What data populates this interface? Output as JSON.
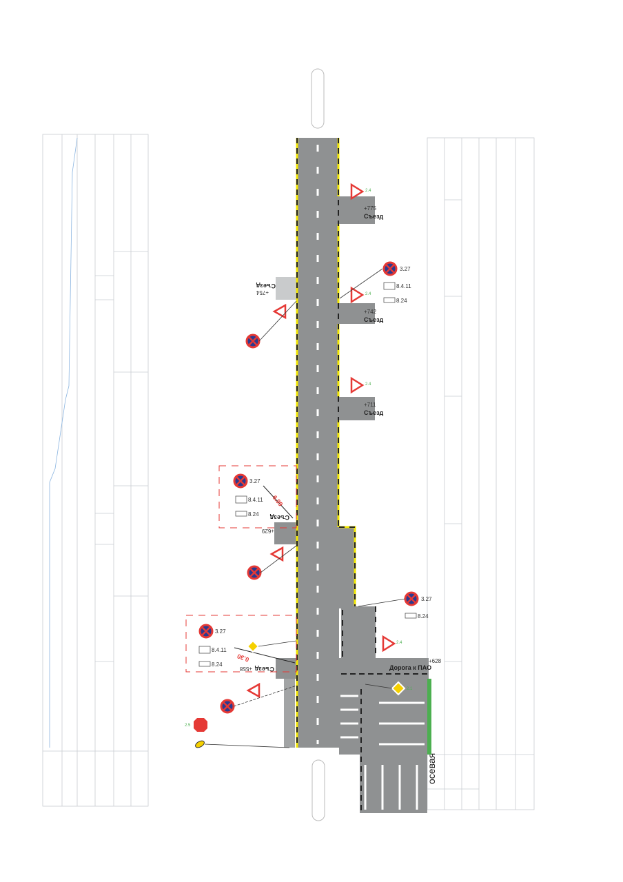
{
  "colors": {
    "road": "#8f9192",
    "edge": "#f2e600",
    "sign_red": "#e53935",
    "sign_blue": "#2b3a8f",
    "guide": "#d33",
    "green": "#4caf50",
    "priority": "#f5d000"
  },
  "exits": [
    {
      "station": "+775",
      "label": "Съезд"
    },
    {
      "station": "+742",
      "label": "Съезд"
    },
    {
      "station": "+711",
      "label": "Съезд"
    }
  ],
  "left_exits": [
    {
      "station": "+754",
      "label": "Съезд"
    },
    {
      "station": "+629",
      "label": "Съезд"
    },
    {
      "station": "+558",
      "label": "Съезд"
    }
  ],
  "junction": {
    "station": "+628",
    "label": "Дорога к ПАО"
  },
  "signs": {
    "no_stopping": "3.27",
    "plate_zone": "8.4.11",
    "plate_tow": "8.24",
    "yield": "2.4",
    "priority": "2.1",
    "stop": "2.5"
  },
  "guides": {
    "upper": "6.99",
    "lower": "0.30"
  },
  "table_right": {
    "header": "осевая"
  }
}
